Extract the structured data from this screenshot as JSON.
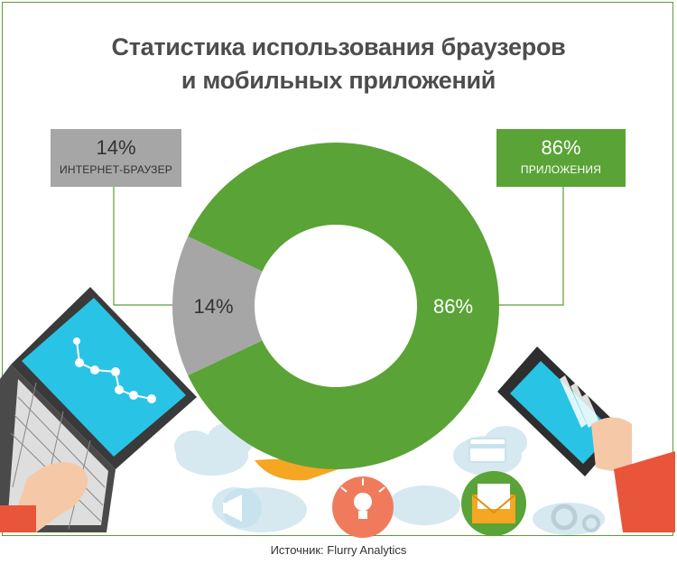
{
  "title_line1": "Статистика использования браузеров",
  "title_line2": "и мобильных приложений",
  "source": "Источник: Flurry Analytics",
  "colors": {
    "apps": "#5aa336",
    "browser": "#a6a6a6",
    "frame": "#5a9e3a"
  },
  "chart_data": {
    "type": "pie",
    "variant": "donut",
    "title": "Статистика использования браузеров и мобильных приложений",
    "slices": [
      {
        "label": "Интернет-браузер",
        "value": 14,
        "display": "14%",
        "color": "#a6a6a6"
      },
      {
        "label": "Приложения",
        "value": 86,
        "display": "86%",
        "color": "#5aa336"
      }
    ]
  },
  "callouts": {
    "browser": {
      "percent": "14%",
      "label": "Интернет-браузер"
    },
    "apps": {
      "percent": "86%",
      "label": "Приложения"
    }
  },
  "icons": [
    "laptop-icon",
    "hand-icon",
    "smartphone-icon",
    "cloud-icon",
    "megaphone-icon",
    "lightbulb-icon",
    "envelope-icon",
    "gear-icon",
    "credit-card-icon"
  ]
}
